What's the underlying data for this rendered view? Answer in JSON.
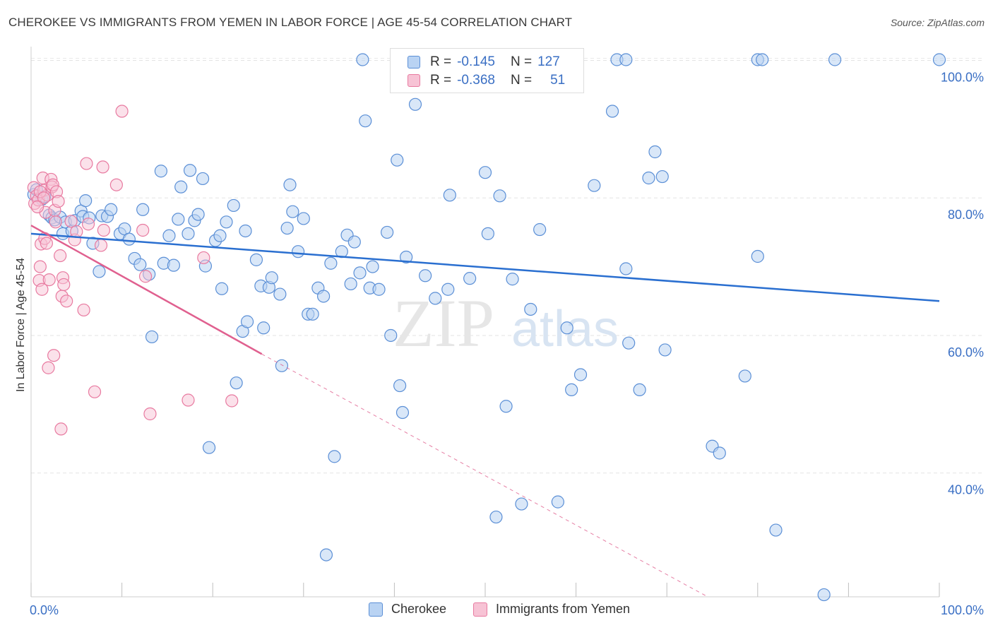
{
  "title": "CHEROKEE VS IMMIGRANTS FROM YEMEN IN LABOR FORCE | AGE 45-54 CORRELATION CHART",
  "source": "Source: ZipAtlas.com",
  "colors": {
    "blue": "#5b8fd6",
    "blue_fill": "#b9d3f3",
    "pink": "#e87aa0",
    "pink_fill": "#f7c3d5",
    "blue_line": "#2a6fd0",
    "pink_line": "#e0608f",
    "axis_text": "#3a6fc4"
  },
  "legend": {
    "rows": [
      {
        "r_label": "R =",
        "r_value": "-0.145",
        "n_label": "N =",
        "n_value": "127"
      },
      {
        "r_label": "R =",
        "r_value": "-0.368",
        "n_label": "N =",
        "n_value": "51"
      }
    ]
  },
  "bottom_legend": {
    "series1": "Cherokee",
    "series2": "Immigrants from Yemen"
  },
  "watermark": {
    "zip": "ZIP",
    "atlas": "atlas"
  },
  "chart_data": {
    "type": "scatter",
    "title": "CHEROKEE VS IMMIGRANTS FROM YEMEN IN LABOR FORCE | AGE 45-54 CORRELATION CHART",
    "xlabel": "",
    "ylabel": "In Labor Force | Age 45-54",
    "xlim": [
      0,
      100
    ],
    "ylim": [
      22,
      102
    ],
    "x_tick_labels": [
      "0.0%",
      "100.0%"
    ],
    "y_tick_labels": [
      "100.0%",
      "80.0%",
      "60.0%",
      "40.0%"
    ],
    "y_tick_values": [
      100,
      80,
      60,
      40
    ],
    "series": [
      {
        "name": "Cherokee",
        "r": -0.145,
        "n": 127,
        "trend": {
          "x": [
            0,
            100
          ],
          "y": [
            74.8,
            65.0
          ]
        },
        "points": [
          [
            0.3,
            80.5
          ],
          [
            0.6,
            81.2
          ],
          [
            1.2,
            79.8
          ],
          [
            1.5,
            80.2
          ],
          [
            2.0,
            77.5
          ],
          [
            2.3,
            77.1
          ],
          [
            2.6,
            76.8
          ],
          [
            3.2,
            77.2
          ],
          [
            3.5,
            74.8
          ],
          [
            3.8,
            76.5
          ],
          [
            4.5,
            75.2
          ],
          [
            4.8,
            76.7
          ],
          [
            5.5,
            78.1
          ],
          [
            5.7,
            77.3
          ],
          [
            6.0,
            79.6
          ],
          [
            6.4,
            77.1
          ],
          [
            6.8,
            73.4
          ],
          [
            7.5,
            69.3
          ],
          [
            7.8,
            77.4
          ],
          [
            8.4,
            77.3
          ],
          [
            8.8,
            78.3
          ],
          [
            9.8,
            74.8
          ],
          [
            10.3,
            75.5
          ],
          [
            10.8,
            74.0
          ],
          [
            11.4,
            71.2
          ],
          [
            12.0,
            70.3
          ],
          [
            12.3,
            78.3
          ],
          [
            13.0,
            68.9
          ],
          [
            13.3,
            59.8
          ],
          [
            14.3,
            83.9
          ],
          [
            14.6,
            70.5
          ],
          [
            15.2,
            74.5
          ],
          [
            15.7,
            70.2
          ],
          [
            16.2,
            76.9
          ],
          [
            16.5,
            81.6
          ],
          [
            17.3,
            74.8
          ],
          [
            17.5,
            84.0
          ],
          [
            18.0,
            76.7
          ],
          [
            18.4,
            77.6
          ],
          [
            18.9,
            82.8
          ],
          [
            19.2,
            70.1
          ],
          [
            19.6,
            43.7
          ],
          [
            20.3,
            73.8
          ],
          [
            20.8,
            74.5
          ],
          [
            21.0,
            66.8
          ],
          [
            21.5,
            76.5
          ],
          [
            22.3,
            78.9
          ],
          [
            22.6,
            53.1
          ],
          [
            23.3,
            60.6
          ],
          [
            23.6,
            75.2
          ],
          [
            23.8,
            62.0
          ],
          [
            24.8,
            71.0
          ],
          [
            25.3,
            67.2
          ],
          [
            25.6,
            61.1
          ],
          [
            26.2,
            67.0
          ],
          [
            26.5,
            68.4
          ],
          [
            27.4,
            66.0
          ],
          [
            27.6,
            55.6
          ],
          [
            28.2,
            75.6
          ],
          [
            28.5,
            81.9
          ],
          [
            28.8,
            78.0
          ],
          [
            29.4,
            72.2
          ],
          [
            30.0,
            77.0
          ],
          [
            30.5,
            63.1
          ],
          [
            31.0,
            63.1
          ],
          [
            31.6,
            66.9
          ],
          [
            32.2,
            65.7
          ],
          [
            32.5,
            28.1
          ],
          [
            33.0,
            70.5
          ],
          [
            33.4,
            42.4
          ],
          [
            34.2,
            72.2
          ],
          [
            34.8,
            74.6
          ],
          [
            35.2,
            67.5
          ],
          [
            35.6,
            73.6
          ],
          [
            36.2,
            69.1
          ],
          [
            36.8,
            91.2
          ],
          [
            37.3,
            66.9
          ],
          [
            37.6,
            70.0
          ],
          [
            38.3,
            66.7
          ],
          [
            39.2,
            75.0
          ],
          [
            39.6,
            60.0
          ],
          [
            40.3,
            85.5
          ],
          [
            40.6,
            52.7
          ],
          [
            40.9,
            48.8
          ],
          [
            41.3,
            71.4
          ],
          [
            42.3,
            93.6
          ],
          [
            43.4,
            68.7
          ],
          [
            44.5,
            65.4
          ],
          [
            45.9,
            66.7
          ],
          [
            46.1,
            80.4
          ],
          [
            48.3,
            68.3
          ],
          [
            50.0,
            83.7
          ],
          [
            50.3,
            74.8
          ],
          [
            51.2,
            33.6
          ],
          [
            51.6,
            80.3
          ],
          [
            52.3,
            49.7
          ],
          [
            53.0,
            68.2
          ],
          [
            54.0,
            35.5
          ],
          [
            55.0,
            63.8
          ],
          [
            56.0,
            75.4
          ],
          [
            58.0,
            35.8
          ],
          [
            59.0,
            61.1
          ],
          [
            59.5,
            52.1
          ],
          [
            60.5,
            54.3
          ],
          [
            62.0,
            81.8
          ],
          [
            64.0,
            92.6
          ],
          [
            65.5,
            69.7
          ],
          [
            65.8,
            58.9
          ],
          [
            67.0,
            52.1
          ],
          [
            68.0,
            82.9
          ],
          [
            68.7,
            86.7
          ],
          [
            69.5,
            83.1
          ],
          [
            69.8,
            57.9
          ],
          [
            75.0,
            43.9
          ],
          [
            75.8,
            42.9
          ],
          [
            78.6,
            54.1
          ],
          [
            80.0,
            71.5
          ],
          [
            82.0,
            31.7
          ],
          [
            87.3,
            22.3
          ],
          [
            88.5,
            100.1
          ],
          [
            36.5,
            100.1
          ],
          [
            52.0,
            100.1
          ],
          [
            64.5,
            100.1
          ],
          [
            65.5,
            100.1
          ],
          [
            80.0,
            100.1
          ],
          [
            80.5,
            100.1
          ],
          [
            100.0,
            100.1
          ]
        ]
      },
      {
        "name": "Immigrants from Yemen",
        "r": -0.368,
        "n": 51,
        "trend": {
          "x": [
            0,
            25.4
          ],
          "y": [
            76.0,
            57.3
          ]
        },
        "trend_dashed": {
          "x": [
            25.4,
            74.5
          ],
          "y": [
            57.3,
            22.0
          ]
        },
        "points": [
          [
            0.3,
            81.5
          ],
          [
            0.4,
            79.2
          ],
          [
            0.6,
            80.3
          ],
          [
            0.8,
            79.7
          ],
          [
            0.9,
            68.0
          ],
          [
            1.0,
            70.0
          ],
          [
            1.1,
            73.3
          ],
          [
            1.2,
            66.7
          ],
          [
            1.3,
            82.9
          ],
          [
            1.4,
            81.1
          ],
          [
            1.5,
            74.1
          ],
          [
            1.6,
            77.9
          ],
          [
            1.7,
            73.4
          ],
          [
            1.8,
            80.4
          ],
          [
            1.9,
            55.3
          ],
          [
            2.0,
            68.1
          ],
          [
            2.2,
            82.7
          ],
          [
            2.3,
            81.6
          ],
          [
            2.4,
            81.9
          ],
          [
            2.5,
            57.1
          ],
          [
            2.6,
            78.2
          ],
          [
            2.7,
            76.5
          ],
          [
            2.8,
            80.9
          ],
          [
            3.0,
            79.5
          ],
          [
            3.2,
            71.6
          ],
          [
            3.3,
            46.4
          ],
          [
            3.4,
            65.7
          ],
          [
            3.5,
            68.4
          ],
          [
            3.6,
            67.4
          ],
          [
            3.9,
            65.0
          ],
          [
            4.4,
            76.6
          ],
          [
            4.8,
            73.9
          ],
          [
            5.0,
            75.1
          ],
          [
            5.8,
            63.7
          ],
          [
            6.1,
            85.0
          ],
          [
            6.3,
            76.2
          ],
          [
            7.0,
            51.8
          ],
          [
            7.7,
            73.1
          ],
          [
            7.9,
            84.5
          ],
          [
            8.0,
            75.3
          ],
          [
            9.4,
            81.9
          ],
          [
            10.0,
            92.6
          ],
          [
            12.3,
            75.3
          ],
          [
            12.6,
            68.6
          ],
          [
            13.1,
            48.6
          ],
          [
            17.3,
            50.6
          ],
          [
            19.0,
            71.3
          ],
          [
            22.1,
            50.5
          ],
          [
            1.0,
            80.9
          ],
          [
            1.4,
            80.0
          ],
          [
            0.7,
            78.7
          ]
        ]
      }
    ]
  }
}
